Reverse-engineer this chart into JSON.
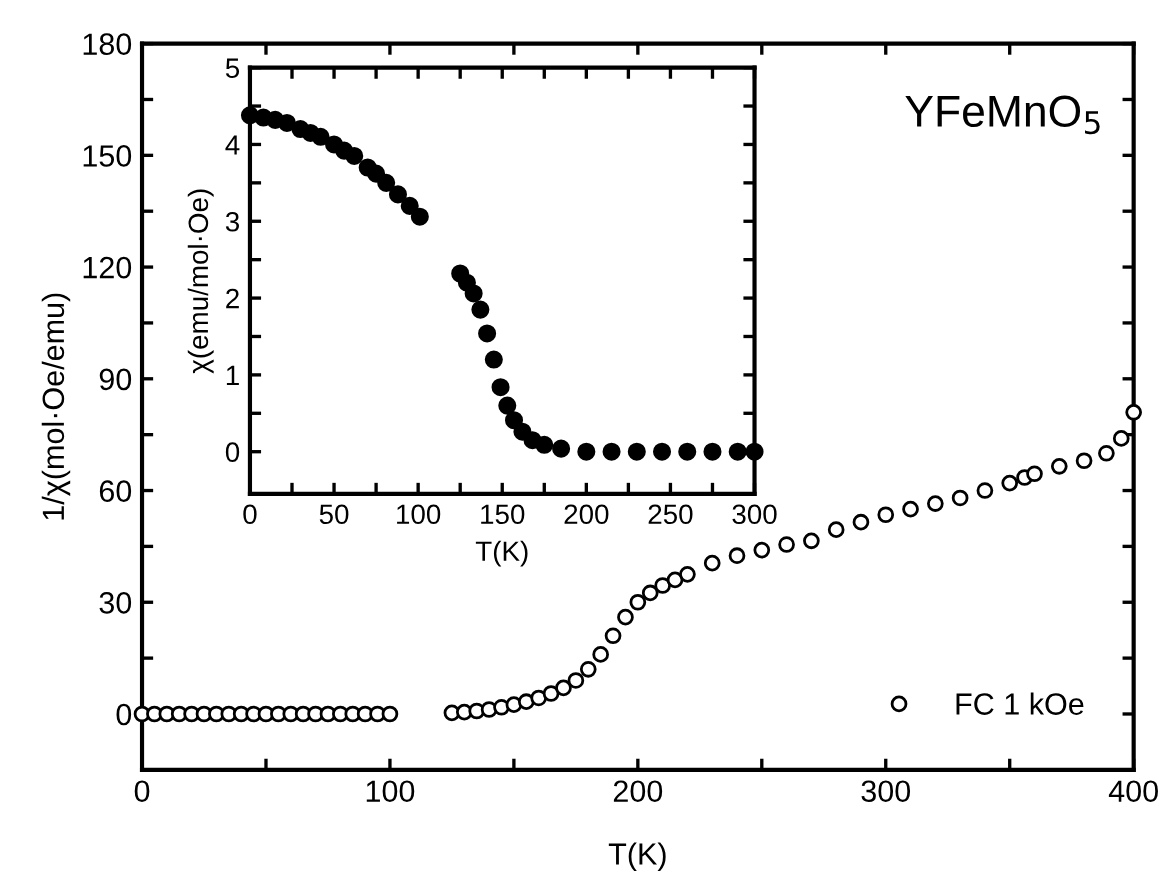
{
  "chart_data": [
    {
      "type": "scatter",
      "xlabel": "T(K)",
      "ylabel": "1/χ(mol·Oe/emu)",
      "xlim": [
        0,
        400
      ],
      "ylim": [
        -15,
        180
      ],
      "xticks": [
        0,
        {
          "value": 50,
          "label": null
        },
        100,
        {
          "value": 150,
          "label": null
        },
        200,
        {
          "value": 250,
          "label": null
        },
        300,
        {
          "value": 350,
          "label": null
        },
        400
      ],
      "yticks": [
        0,
        {
          "value": 15,
          "label": null
        },
        30,
        {
          "value": 45,
          "label": null
        },
        60,
        {
          "value": 75,
          "label": null
        },
        90,
        {
          "value": 105,
          "label": null
        },
        120,
        {
          "value": 135,
          "label": null
        },
        150,
        {
          "value": 165,
          "label": null
        },
        180
      ],
      "annotations": [
        "YFeMnO$_{5}$"
      ],
      "legend": "bottom right",
      "marker": "circle",
      "grid": false,
      "series": [
        {
          "name": "FC 1 kOe",
          "color": "#000000",
          "x": [
            0,
            5,
            10,
            15,
            20,
            25,
            30,
            35,
            40,
            45,
            50,
            55,
            60,
            65,
            70,
            75,
            80,
            85,
            90,
            95,
            100,
            125,
            130,
            135,
            140,
            145,
            150,
            155,
            160,
            165,
            170,
            175,
            180,
            185,
            190,
            195,
            200,
            205,
            210,
            215,
            220,
            230,
            240,
            250,
            260,
            270,
            280,
            290,
            300,
            310,
            320,
            330,
            340,
            350,
            356,
            360,
            370,
            380,
            389,
            395,
            400
          ],
          "values": [
            0,
            0,
            0,
            0,
            0,
            0,
            0,
            0,
            0,
            0,
            0,
            0,
            0,
            0,
            0,
            0,
            0,
            0,
            0,
            0,
            0,
            0.3,
            0.5,
            0.8,
            1.2,
            1.8,
            2.5,
            3.3,
            4.3,
            5.5,
            7,
            9,
            12,
            16,
            21,
            26,
            30,
            32.5,
            34.5,
            36,
            37.5,
            40.5,
            42.5,
            44,
            45.5,
            46.5,
            49.5,
            51.5,
            53.5,
            55,
            56.5,
            58,
            60,
            62,
            63.5,
            64.5,
            66.5,
            68,
            70,
            74,
            81
          ]
        }
      ]
    },
    {
      "type": "scatter",
      "xlabel": "T(K)",
      "ylabel": "χ(emu/mol·Oe)",
      "xlim": [
        0,
        300
      ],
      "ylim": [
        -0.55,
        5
      ],
      "xticks": [
        0,
        {
          "value": 25,
          "label": null
        },
        50,
        {
          "value": 75,
          "label": null
        },
        100,
        {
          "value": 125,
          "label": null
        },
        150,
        {
          "value": 175,
          "label": null
        },
        200,
        {
          "value": 225,
          "label": null
        },
        250,
        {
          "value": 275,
          "label": null
        },
        300
      ],
      "yticks": [
        0,
        {
          "value": 0.5,
          "label": null
        },
        1,
        {
          "value": 1.5,
          "label": null
        },
        2,
        {
          "value": 2.5,
          "label": null
        },
        3,
        {
          "value": 3.5,
          "label": null
        },
        4,
        {
          "value": 4.5,
          "label": null
        },
        5
      ],
      "marker": "circle",
      "grid": false,
      "series": [
        {
          "color": "#000000",
          "x": [
            0,
            8,
            15,
            22,
            30,
            36,
            42,
            50,
            56,
            62,
            70,
            75,
            81,
            88,
            95,
            101,
            125,
            129,
            133,
            137,
            141,
            145,
            149,
            153,
            157,
            162,
            168,
            175,
            185,
            200,
            215,
            230,
            245,
            260,
            275,
            290,
            300
          ],
          "values": [
            4.38,
            4.35,
            4.32,
            4.28,
            4.2,
            4.15,
            4.1,
            4.0,
            3.92,
            3.85,
            3.7,
            3.62,
            3.5,
            3.35,
            3.2,
            3.06,
            2.32,
            2.2,
            2.06,
            1.85,
            1.54,
            1.2,
            0.84,
            0.6,
            0.41,
            0.26,
            0.15,
            0.09,
            0.04,
            0.0,
            0.0,
            0.0,
            0.0,
            0.0,
            0.0,
            0.0,
            0.0
          ]
        }
      ]
    }
  ]
}
